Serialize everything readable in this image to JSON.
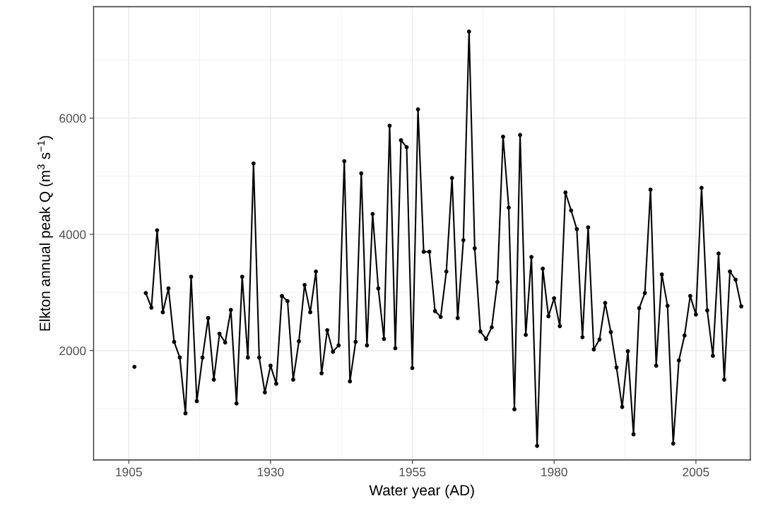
{
  "chart_data": {
    "type": "line",
    "xlabel": "Water year (AD)",
    "ylabel": "Elkton annual peak Q (m$^{3}$ s$^{−1}$)",
    "xlim": [
      1898.8,
      2014.6
    ],
    "xticks": [
      1905,
      1930,
      1955,
      1980,
      2005
    ],
    "ylim": [
      117,
      7917
    ],
    "yticks": [
      2000,
      4000,
      6000
    ],
    "grid": true,
    "marker": "circle",
    "line_style": "solid",
    "series": [
      {
        "color": "#000000",
        "x": [
          1906,
          1907,
          1908,
          1909,
          1910,
          1911,
          1912,
          1913,
          1914,
          1915,
          1916,
          1917,
          1918,
          1919,
          1920,
          1921,
          1922,
          1923,
          1924,
          1925,
          1926,
          1927,
          1928,
          1929,
          1930,
          1931,
          1932,
          1933,
          1934,
          1935,
          1936,
          1937,
          1938,
          1939,
          1940,
          1941,
          1942,
          1943,
          1944,
          1945,
          1946,
          1947,
          1948,
          1949,
          1950,
          1951,
          1952,
          1953,
          1954,
          1955,
          1956,
          1957,
          1958,
          1959,
          1960,
          1961,
          1962,
          1963,
          1964,
          1965,
          1966,
          1967,
          1968,
          1969,
          1970,
          1971,
          1972,
          1973,
          1974,
          1975,
          1976,
          1977,
          1978,
          1979,
          1980,
          1981,
          1982,
          1983,
          1984,
          1985,
          1986,
          1987,
          1988,
          1989,
          1990,
          1991,
          1992,
          1993,
          1994,
          1995,
          1996,
          1997,
          1998,
          1999,
          2000,
          2001,
          2002,
          2003,
          2004,
          2005,
          2006,
          2007,
          2008,
          2009,
          2010,
          2011,
          2012,
          2013
        ],
        "values": [
          1720,
          null,
          2990,
          2740,
          4070,
          2660,
          3070,
          2150,
          1880,
          920,
          3270,
          1130,
          1880,
          2560,
          1500,
          2290,
          2140,
          2700,
          1090,
          3270,
          1880,
          5220,
          1880,
          1280,
          1740,
          1430,
          2940,
          2850,
          1500,
          2160,
          3130,
          2660,
          3360,
          1610,
          2350,
          1980,
          2090,
          5260,
          1470,
          2150,
          5050,
          2090,
          4350,
          3070,
          2200,
          5870,
          2040,
          5620,
          5500,
          1700,
          6150,
          3700,
          3700,
          2680,
          2580,
          3360,
          4970,
          2560,
          3900,
          7490,
          3760,
          2330,
          2200,
          2400,
          3180,
          5680,
          4460,
          990,
          5710,
          2270,
          3610,
          360,
          3410,
          2590,
          2900,
          2420,
          4720,
          4410,
          4090,
          2230,
          4120,
          2020,
          2190,
          2820,
          2320,
          1710,
          1030,
          1990,
          560,
          2730,
          2990,
          4770,
          1740,
          3310,
          2770,
          400,
          1830,
          2260,
          2940,
          2620,
          4800,
          2690,
          1910,
          3670,
          1500,
          3360,
          3220,
          2760
        ]
      }
    ]
  }
}
